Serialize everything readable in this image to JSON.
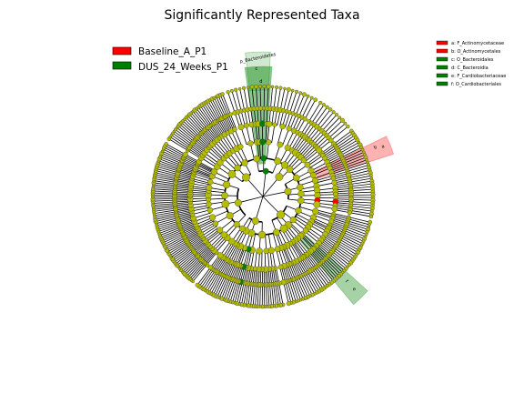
{
  "chart_data": {
    "type": "cladogram",
    "title": "Significantly Represented Taxa",
    "groups": [
      {
        "name": "Baseline_A_P1",
        "color": "#ff0000"
      },
      {
        "name": "DUS_24_Weeks_P1",
        "color": "#008000"
      }
    ],
    "node_color": "#b5bd00",
    "clade_legend": [
      {
        "label": "a: F_Actinomycetaceae",
        "group": "Baseline_A_P1"
      },
      {
        "label": "b: O_Actinomycetales",
        "group": "Baseline_A_P1"
      },
      {
        "label": "c: O_Bacteroidales",
        "group": "DUS_24_Weeks_P1"
      },
      {
        "label": "d: C_Bacteroidia",
        "group": "DUS_24_Weeks_P1"
      },
      {
        "label": "e: F_Cardiobacteriaceae",
        "group": "DUS_24_Weeks_P1"
      },
      {
        "label": "f: O_Cardiobacteriales",
        "group": "DUS_24_Weeks_P1"
      }
    ],
    "highlighted_clades": [
      {
        "label": "p_Bacteroidetes",
        "group": "DUS_24_Weeks_P1"
      },
      {
        "label": "a",
        "group": "Baseline_A_P1"
      },
      {
        "label": "b",
        "group": "Baseline_A_P1"
      },
      {
        "label": "c",
        "group": "DUS_24_Weeks_P1"
      },
      {
        "label": "d",
        "group": "DUS_24_Weeks_P1"
      },
      {
        "label": "e",
        "group": "DUS_24_Weeks_P1"
      },
      {
        "label": "f",
        "group": "DUS_24_Weeks_P1"
      }
    ]
  }
}
